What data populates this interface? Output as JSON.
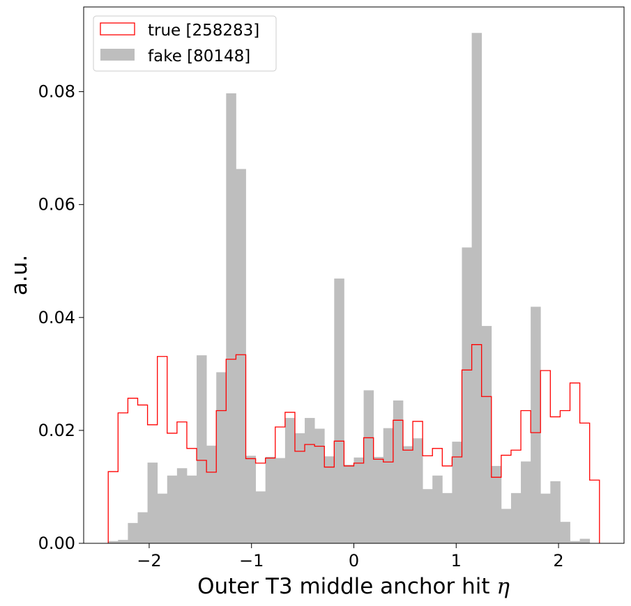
{
  "chart_data": {
    "type": "histogram",
    "xlabel": "Outer T3 middle anchor hit ",
    "xlabel_symbol": "η",
    "ylabel": "a.u.",
    "xlim": [
      -2.64,
      2.64
    ],
    "ylim": [
      0,
      0.095
    ],
    "x_ticks": [
      -2,
      -1,
      0,
      1,
      2
    ],
    "x_tick_labels": [
      "−2",
      "−1",
      "0",
      "1",
      "2"
    ],
    "y_ticks": [
      0,
      0.02,
      0.04,
      0.06,
      0.08
    ],
    "y_tick_labels": [
      "0.00",
      "0.02",
      "0.04",
      "0.06",
      "0.08"
    ],
    "bin_range": [
      -2.4,
      2.4
    ],
    "legend_position": "upper-left",
    "series": [
      {
        "name": "true [258283]",
        "style": "step",
        "color": "#ff0000",
        "values": [
          0.0127,
          0.0231,
          0.0257,
          0.0245,
          0.021,
          0.0331,
          0.0195,
          0.0215,
          0.0168,
          0.0147,
          0.0126,
          0.0235,
          0.0326,
          0.0334,
          0.015,
          0.0142,
          0.0151,
          0.0206,
          0.0232,
          0.0163,
          0.0175,
          0.0172,
          0.0135,
          0.0181,
          0.0137,
          0.0142,
          0.0187,
          0.0149,
          0.0144,
          0.0218,
          0.0165,
          0.0216,
          0.0155,
          0.0168,
          0.0137,
          0.0153,
          0.0307,
          0.0352,
          0.026,
          0.0117,
          0.0156,
          0.0165,
          0.0235,
          0.0196,
          0.0306,
          0.0224,
          0.0235,
          0.0284,
          0.0213,
          0.0112
        ]
      },
      {
        "name": "fake [80148]",
        "style": "filled",
        "color": "#bebebe",
        "values": [
          0.0004,
          0.0006,
          0.0036,
          0.0055,
          0.0143,
          0.0088,
          0.012,
          0.0133,
          0.012,
          0.0333,
          0.0173,
          0.0303,
          0.0797,
          0.0663,
          0.0155,
          0.0092,
          0.0153,
          0.0151,
          0.0222,
          0.0195,
          0.0222,
          0.0203,
          0.0154,
          0.0469,
          0.0139,
          0.0152,
          0.0271,
          0.0153,
          0.0204,
          0.0253,
          0.0172,
          0.0186,
          0.0096,
          0.012,
          0.0089,
          0.018,
          0.0524,
          0.0904,
          0.0385,
          0.0137,
          0.0061,
          0.0089,
          0.0145,
          0.0419,
          0.0088,
          0.011,
          0.0038,
          0.0004,
          0.0008,
          0.0
        ]
      }
    ]
  }
}
